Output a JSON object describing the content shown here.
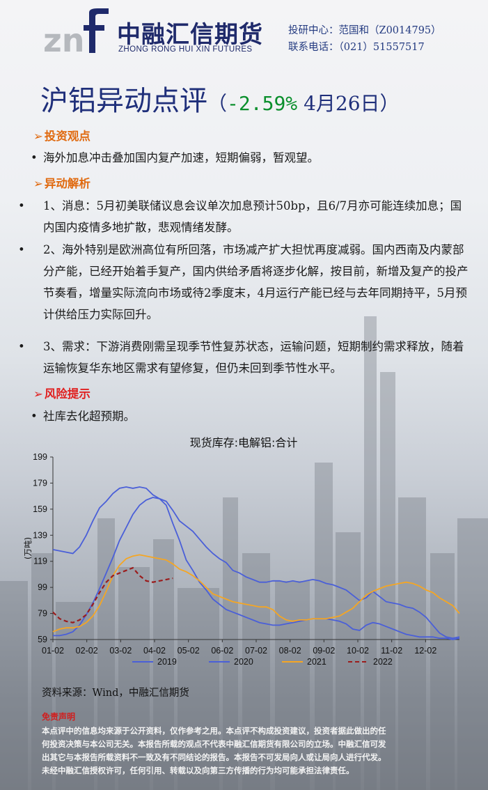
{
  "header": {
    "logo_cn": "中融汇信期货",
    "logo_en": "ZHONG RONG HUI XIN FUTURES",
    "contact_line1": "投研中心：范国和（Z0014795）",
    "contact_line2": "联系电话：（021）51557517"
  },
  "title": {
    "main1": "沪铝",
    "main2": "异动点评",
    "paren_open": "（",
    "change": "-2.59%",
    "date": " 4月26日",
    "paren_close": "）"
  },
  "sections": {
    "view_head": "投资观点",
    "view_text": "海外加息冲击叠加国内复产加速，短期偏弱，暂观望。",
    "analysis_head": "异动解析",
    "analysis_items": [
      "1、消息：5月初美联储议息会议单次加息预计50bp，且6/7月亦可能连续加息；国内国内疫情多地扩散，悲观情绪发酵。",
      "2、海外特别是欧洲高位有所回落，市场减产扩大担忧再度减弱。国内西南及内蒙部分产能，已经开始着手复产，国内供给矛盾将逐步化解，按目前，新增及复产的投产节奏看，增量实际流向市场或待2季度末，4月运行产能已经与去年同期持平，5月预计供给压力实际回升。",
      "3、需求：下游消费刚需呈现季节性复苏状态，运输问题，短期制约需求释放，随着运输恢复华东地区需求有望修复，但仍未回到季节性水平。"
    ],
    "risk_head": "风险提示",
    "risk_text": "社库去化超预期。"
  },
  "icons": {
    "section_arrow": "arrow-right-icon",
    "bullet": "bullet-dot-icon"
  },
  "colors": {
    "section_head": "#e06a10",
    "risk_head": "#e02020",
    "title": "#1f2f7a",
    "change_up_down": "#0a8f2c",
    "s2019": "#4a5fd8",
    "s2020": "#4a5fd8",
    "s2021": "#f5a623",
    "s2022": "#9b1c1c"
  },
  "chart_data": {
    "type": "line",
    "title": "现货库存:电解铝:合计",
    "ylabel": "(万吨)",
    "ylim": [
      59,
      199
    ],
    "yticks": [
      59,
      79,
      99,
      119,
      139,
      159,
      179,
      199
    ],
    "xticks": [
      "01-02",
      "02-02",
      "03-02",
      "04-02",
      "05-02",
      "06-02",
      "07-02",
      "08-02",
      "09-02",
      "10-02",
      "11-02",
      "12-02"
    ],
    "x_unit": "week",
    "legend_position": "bottom",
    "series": [
      {
        "name": "2019",
        "style": "solid",
        "color": "#4a5fd8",
        "values": [
          128,
          127,
          126,
          125,
          130,
          139,
          150,
          160,
          165,
          171,
          175,
          176,
          175,
          176,
          175,
          170,
          167,
          165,
          158,
          150,
          146,
          142,
          136,
          130,
          125,
          121,
          118,
          112,
          110,
          107,
          105,
          103,
          103,
          104,
          104,
          103,
          104,
          103,
          104,
          105,
          104,
          102,
          101,
          99,
          97,
          93,
          89,
          91,
          96,
          92,
          88,
          87,
          86,
          84,
          83,
          80,
          76,
          70,
          64,
          61,
          60,
          61
        ]
      },
      {
        "name": "2020",
        "style": "solid",
        "color": "#4a5fd8",
        "values": [
          62,
          62,
          63,
          65,
          70,
          78,
          87,
          98,
          110,
          122,
          135,
          145,
          155,
          162,
          166,
          168,
          167,
          162,
          148,
          135,
          120,
          112,
          103,
          97,
          90,
          86,
          82,
          80,
          78,
          76,
          74,
          72,
          71,
          70,
          70,
          71,
          72,
          73,
          74,
          75,
          75,
          75,
          74,
          73,
          71,
          67,
          66,
          70,
          72,
          71,
          69,
          67,
          65,
          63,
          62,
          61,
          61,
          61,
          60,
          60,
          59,
          60
        ]
      },
      {
        "name": "2021",
        "style": "solid",
        "color": "#f5a623",
        "values": [
          65,
          67,
          68,
          68,
          69,
          72,
          77,
          85,
          96,
          108,
          116,
          121,
          123,
          124,
          123,
          122,
          121,
          120,
          117,
          113,
          111,
          108,
          104,
          99,
          94,
          92,
          90,
          88,
          87,
          86,
          85,
          84,
          84,
          82,
          77,
          74,
          73,
          74,
          74,
          75,
          75,
          75,
          76,
          77,
          80,
          83,
          88,
          93,
          96,
          98,
          100,
          101,
          102,
          103,
          102,
          100,
          97,
          95,
          91,
          88,
          85,
          79
        ]
      },
      {
        "name": "2022",
        "style": "dashed",
        "color": "#9b1c1c",
        "values": [
          80,
          75,
          73,
          72,
          74,
          78,
          86,
          95,
          103,
          108,
          110,
          112,
          114,
          108,
          104,
          103,
          104,
          105,
          106
        ]
      }
    ]
  },
  "footer": {
    "source": "资料来源：Wind，中融汇信期货",
    "disclaimer_head": "免责声明",
    "disclaimer_lines": [
      "本点评中的信息均来源于公开资料，仅作参考之用。本点评不构成投资建议，投资者据此做出的任",
      "何投资决策与本公司无关。本报告所载的观点不代表中融汇信期货有限公司的立场。中融汇信可发",
      "出其它与本报告所载资料不一致及有不同结论的报告。本报告不可发局向人或让局向人进行代发。",
      "未经中融汇信授权许可，任何引用、转载以及向第三方传播的行为均可能承担法律责任。"
    ]
  }
}
